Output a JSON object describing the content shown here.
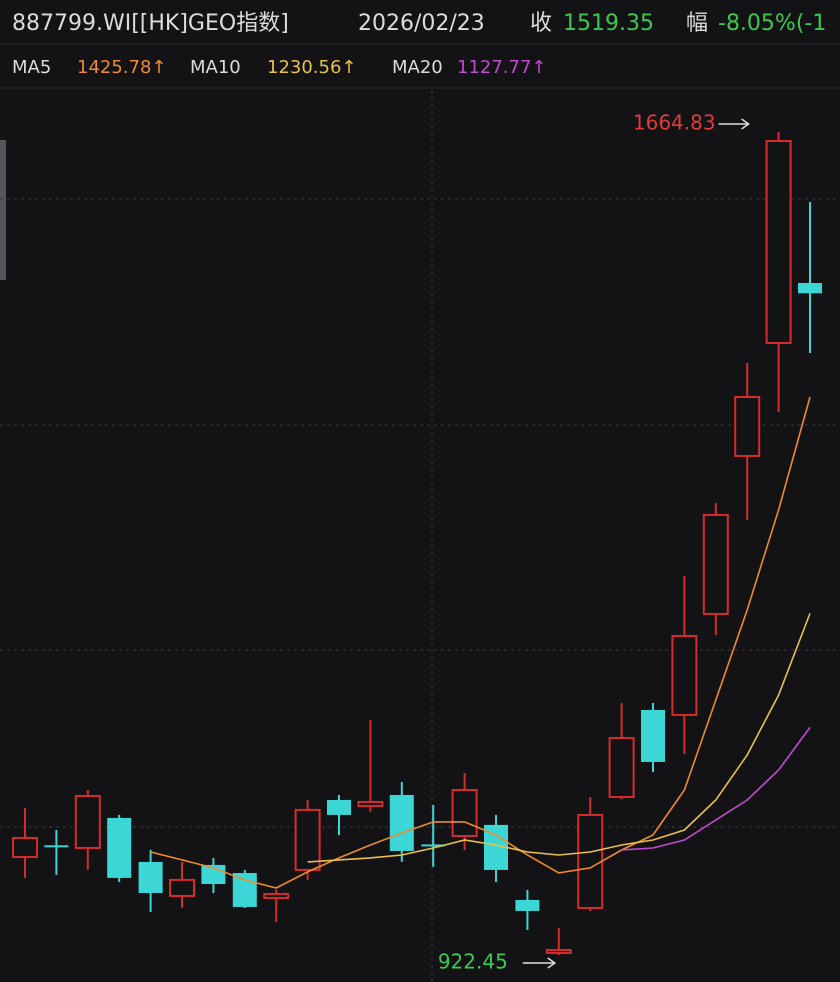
{
  "chart_data": {
    "type": "candlestick",
    "header": {
      "title": "887799.WI[[HK]GEO指数]",
      "date": "2026/02/23",
      "close_label": "收",
      "close_value": "1519.35",
      "change_label": "幅",
      "change": "-8.05%(-1"
    },
    "categories": [
      null,
      null,
      null,
      null,
      null,
      null,
      null,
      null,
      null,
      null,
      null,
      null,
      null,
      null,
      null,
      null,
      null,
      null,
      null,
      null,
      null,
      null,
      null,
      null,
      null,
      null
    ],
    "open": [
      1010.9,
      1021.0,
      1019.0,
      1046.1,
      1006.4,
      975.7,
      1003.7,
      996.4,
      973.9,
      999.2,
      1062.3,
      1056.9,
      1066.8,
      1021.8,
      1029.8,
      1039.8,
      972.1,
      924.3,
      964.9,
      1065.0,
      1143.5,
      1139.0,
      1230.1,
      1372.6,
      1474.5,
      1528.6
    ],
    "high": [
      1055.1,
      1035.2,
      1071.3,
      1048.8,
      1017.2,
      1006.4,
      1010.0,
      999.2,
      981.1,
      1062.3,
      1066.8,
      1134.5,
      1078.5,
      1057.8,
      1086.6,
      1048.8,
      981.1,
      946.9,
      1065.0,
      1149.8,
      1149.8,
      1264.3,
      1330.2,
      1456.5,
      1664.83,
      1601.7
    ],
    "low": [
      991.9,
      994.7,
      999.2,
      988.3,
      961.3,
      964.9,
      978.4,
      964.9,
      952.2,
      990.2,
      1030.7,
      1051.5,
      1006.4,
      1001.9,
      1017.2,
      988.3,
      945.0,
      922.45,
      962.2,
      1063.0,
      1087.5,
      1103.8,
      1211.1,
      1314.9,
      1412.3,
      1465.5
    ],
    "close": [
      1028.0,
      1020.0,
      1065.9,
      992.0,
      978.4,
      990.2,
      986.5,
      965.8,
      977.5,
      1053.3,
      1048.8,
      1060.5,
      1016.3,
      1020.8,
      1071.3,
      999.2,
      962.2,
      927.0,
      1048.8,
      1118.2,
      1096.6,
      1210.2,
      1319.4,
      1425.8,
      1656.7,
      1519.35
    ],
    "high_labels": [
      null,
      null,
      null,
      null,
      null,
      null,
      null,
      null,
      null,
      null,
      null,
      null,
      null,
      null,
      null,
      null,
      null,
      null,
      null,
      null,
      null,
      null,
      null,
      null,
      "1664.83",
      null
    ],
    "low_labels": [
      null,
      null,
      null,
      null,
      null,
      null,
      null,
      null,
      null,
      null,
      null,
      null,
      null,
      null,
      null,
      null,
      null,
      "922.45",
      null,
      null,
      null,
      null,
      null,
      null,
      null,
      null
    ],
    "up_color": "#d42b2b",
    "down_color": "#3dd6d6",
    "high_label_color": "#e03a3a",
    "low_label_color": "#3cc850",
    "ylim": [
      898.1,
      1702.7
    ],
    "series": [
      {
        "name": "MA5",
        "color": "#f08a2c",
        "values": [
          null,
          null,
          null,
          null,
          1015.4,
          1008.2,
          1001.0,
          990.1,
          982.9,
          997.4,
          1010.0,
          1021.7,
          1032.5,
          1042.5,
          1042.5,
          1030.7,
          1012.7,
          996.5,
          1001.0,
          1017.2,
          1030.7,
          1071.3,
          1152.5,
          1233.7,
          1323.9,
          1425.78
        ],
        "value_labels": [
          null,
          null,
          null,
          null,
          null,
          null,
          null,
          null,
          null,
          null,
          null,
          null,
          null,
          null,
          null,
          null,
          null,
          null,
          null,
          null,
          null,
          null,
          null,
          null,
          null,
          "1425.78↑"
        ]
      },
      {
        "name": "MA10",
        "color": "#e8c04a",
        "values": [
          null,
          null,
          null,
          null,
          null,
          null,
          null,
          null,
          null,
          1006.4,
          1008.2,
          1010.0,
          1012.7,
          1019.0,
          1026.2,
          1021.7,
          1015.4,
          1012.7,
          1015.4,
          1021.7,
          1026.2,
          1035.2,
          1062.3,
          1102.9,
          1157.0,
          1230.56
        ],
        "value_labels": [
          null,
          null,
          null,
          null,
          null,
          null,
          null,
          null,
          null,
          null,
          null,
          null,
          null,
          null,
          null,
          null,
          null,
          null,
          null,
          null,
          null,
          null,
          null,
          null,
          null,
          "1230.56↑"
        ]
      },
      {
        "name": "MA20",
        "color": "#c04ad0",
        "values": [
          null,
          null,
          null,
          null,
          null,
          null,
          null,
          null,
          null,
          null,
          null,
          null,
          null,
          null,
          null,
          null,
          null,
          null,
          null,
          1017.2,
          1019.0,
          1026.2,
          1044.3,
          1062.3,
          1089.3,
          1127.77
        ],
        "value_labels": [
          null,
          null,
          null,
          null,
          null,
          null,
          null,
          null,
          null,
          null,
          null,
          null,
          null,
          null,
          null,
          null,
          null,
          null,
          null,
          null,
          null,
          null,
          null,
          null,
          null,
          "1127.77↑"
        ]
      }
    ]
  }
}
